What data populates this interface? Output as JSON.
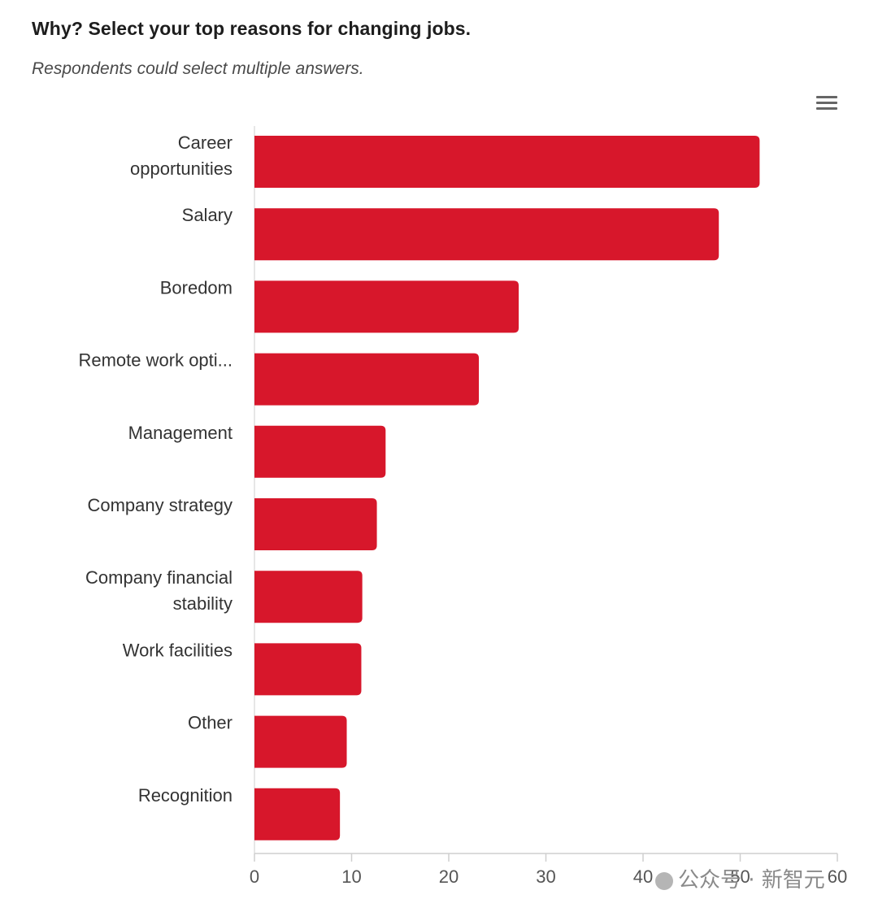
{
  "header": {
    "title": "Why? Select your top reasons for changing jobs.",
    "subtitle": "Respondents could select multiple answers.",
    "menu_icon": "hamburger-menu-icon"
  },
  "watermark": {
    "text": "公众号 · 新智元"
  },
  "chart_data": {
    "type": "bar",
    "orientation": "horizontal",
    "categories": [
      [
        "Career",
        "opportunities"
      ],
      [
        "Salary"
      ],
      [
        "Boredom"
      ],
      [
        "Remote work opti..."
      ],
      [
        "Management"
      ],
      [
        "Company strategy"
      ],
      [
        "Company financial",
        "stability"
      ],
      [
        "Work facilities"
      ],
      [
        "Other"
      ],
      [
        "Recognition"
      ]
    ],
    "values": [
      52,
      47.8,
      27.2,
      23.1,
      13.5,
      12.6,
      11.1,
      11.0,
      9.5,
      8.8
    ],
    "xlim": [
      0,
      60
    ],
    "xticks": [
      0,
      10,
      20,
      30,
      40,
      50,
      60
    ],
    "grid": false,
    "bar_color": "#d7172b"
  }
}
